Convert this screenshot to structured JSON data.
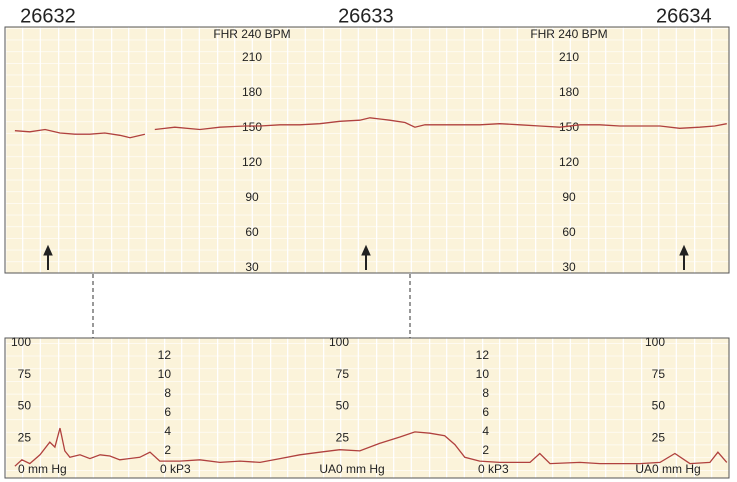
{
  "chart_data": [
    {
      "type": "line",
      "xlim": [
        26631.865,
        26634.142
      ],
      "xticks": [
        26632,
        26633,
        26634
      ],
      "ylim": [
        30,
        240
      ],
      "yticks": [
        30,
        60,
        90,
        120,
        150,
        180,
        210,
        {
          "value": 240,
          "label": "FHR 240 BPM"
        }
      ],
      "series": [
        {
          "name": "FHR",
          "color": "#b0413e",
          "x": [
            26631.896,
            26631.943,
            26631.991,
            26632.038,
            26632.085,
            26632.132,
            26632.179,
            26632.226,
            26632.258,
            26632.305,
            26632.321,
            26632.336,
            26632.399,
            26632.478,
            26632.541,
            26632.619,
            26632.667,
            26632.73,
            26632.792,
            26632.855,
            26632.918,
            26632.981,
            26633.013,
            26633.075,
            26633.123,
            26633.154,
            26633.186,
            26633.264,
            26633.358,
            26633.421,
            26633.484,
            26633.547,
            26633.61,
            26633.673,
            26633.736,
            26633.799,
            26633.862,
            26633.925,
            26633.987,
            26634.05,
            26634.097,
            26634.135
          ],
          "values": [
            152,
            151,
            153,
            150,
            149,
            149,
            150,
            148,
            146,
            149,
            null,
            153,
            155,
            153,
            155,
            156,
            156,
            157,
            157,
            158,
            160,
            161,
            163,
            161,
            159,
            155,
            157,
            157,
            157,
            158,
            157,
            156,
            155,
            157,
            157,
            156,
            156,
            156,
            154,
            155,
            156,
            158
          ]
        }
      ]
    },
    {
      "type": "line",
      "xlim": [
        26631.865,
        26634.142
      ],
      "ylim": [
        0,
        100
      ],
      "yticks": [
        {
          "value": 0,
          "label": "0 mm Hg"
        },
        25,
        50,
        75,
        100
      ],
      "y_label": "UA",
      "y2lim": [
        0,
        13.33
      ],
      "y2ticks": [
        {
          "value": 0,
          "label": "0 kP3"
        },
        2,
        4,
        6,
        8,
        10,
        12
      ],
      "series": [
        {
          "name": "UA",
          "color": "#b0413e",
          "x": [
            26631.896,
            26631.918,
            26631.943,
            26631.975,
            26632.006,
            26632.022,
            26632.038,
            26632.053,
            26632.069,
            26632.101,
            26632.132,
            26632.164,
            26632.195,
            26632.226,
            26632.289,
            26632.321,
            26632.352,
            26632.415,
            26632.478,
            26632.541,
            26632.604,
            26632.667,
            26632.73,
            26632.792,
            26632.855,
            26632.918,
            26632.981,
            26633.044,
            26633.107,
            26633.154,
            26633.201,
            26633.248,
            26633.28,
            26633.311,
            26633.358,
            26633.421,
            26633.516,
            26633.547,
            26633.579,
            26633.673,
            26633.736,
            26633.862,
            26633.925,
            26633.972,
            26634.019,
            26634.082,
            26634.107,
            26634.135
          ],
          "values": [
            3,
            8,
            5,
            12,
            22,
            18,
            33,
            15,
            10,
            12,
            9,
            12,
            11,
            8,
            10,
            14,
            7,
            7,
            8,
            6,
            7,
            6,
            9,
            12,
            14,
            16,
            15,
            21,
            26,
            30,
            29,
            27,
            20,
            10,
            7,
            6,
            6,
            13,
            5,
            6,
            5,
            5,
            6,
            13,
            5,
            6,
            14,
            6
          ]
        }
      ]
    }
  ]
}
